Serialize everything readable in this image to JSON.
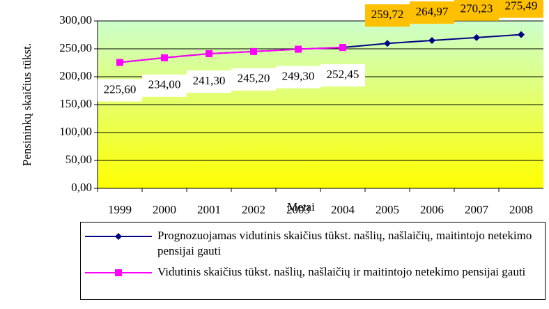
{
  "chart_data": {
    "type": "line",
    "y_label": "Pensininkų skaičius tūkst.",
    "x_label": "Metai",
    "categories": [
      "1999",
      "2000",
      "2001",
      "2002",
      "2003",
      "2004",
      "2005",
      "2006",
      "2007",
      "2008"
    ],
    "series": [
      {
        "name": "Prognozuojamas vidutinis skaičius tūkst. našlių, našlaičių, maitintojo netekimo pensijai gauti",
        "color": "#000080",
        "marker": "diamond",
        "values": [
          225.6,
          234.0,
          241.3,
          245.2,
          249.3,
          252.45,
          259.72,
          264.97,
          270.23,
          275.49
        ],
        "value_labels": [
          null,
          null,
          null,
          null,
          null,
          null,
          "259,72",
          "264,97",
          "270,23",
          "275,49"
        ]
      },
      {
        "name": "Vidutinis skaičius tūkst. našlių, našlaičių ir maitintojo netekimo pensijai gauti",
        "color": "#ff00ff",
        "marker": "square",
        "values": [
          225.6,
          234.0,
          241.3,
          245.2,
          249.3,
          252.45,
          null,
          null,
          null,
          null
        ],
        "value_labels": [
          "225,60",
          "234,00",
          "241,30",
          "245,20",
          "249,30",
          "252,45",
          null,
          null,
          null,
          null
        ]
      }
    ],
    "ylim": [
      0,
      300
    ],
    "yticks": [
      {
        "value": 0,
        "label": "0,00"
      },
      {
        "value": 50,
        "label": "50,00"
      },
      {
        "value": 100,
        "label": "100,00"
      },
      {
        "value": 150,
        "label": "150,00"
      },
      {
        "value": 200,
        "label": "200,00"
      },
      {
        "value": 250,
        "label": "250,00"
      },
      {
        "value": 300,
        "label": "300,00"
      }
    ],
    "grid": true
  }
}
